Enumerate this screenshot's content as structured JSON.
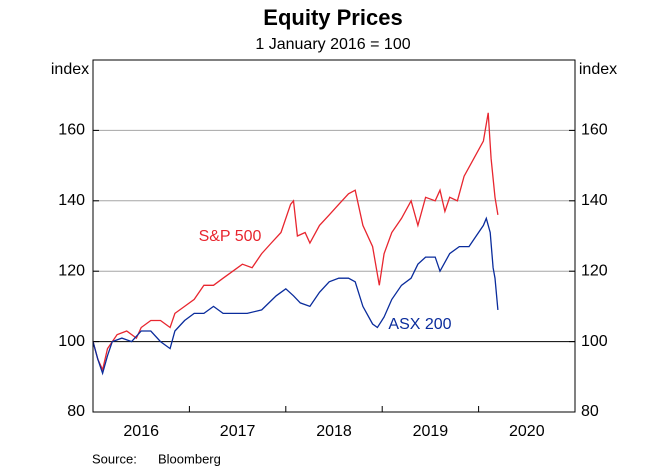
{
  "chart_data": {
    "type": "line",
    "title": "Equity Prices",
    "subtitle": "1 January 2016 = 100",
    "y_axis_label": "index",
    "y2_axis_label": "index",
    "source_label": "Source:",
    "source": "Bloomberg",
    "xlim": [
      2016,
      2021
    ],
    "xticks": [
      {
        "value": 2016.5,
        "label": "2016"
      },
      {
        "value": 2017.5,
        "label": "2017"
      },
      {
        "value": 2018.5,
        "label": "2018"
      },
      {
        "value": 2019.5,
        "label": "2019"
      },
      {
        "value": 2020.5,
        "label": "2020"
      }
    ],
    "ylim": [
      80,
      180
    ],
    "yticks": [
      80,
      100,
      120,
      140,
      160
    ],
    "grid": true,
    "baseline": 100,
    "series": [
      {
        "name": "S&P 500",
        "color": "#e8262f",
        "x": [
          2016.0,
          2016.05,
          2016.1,
          2016.15,
          2016.25,
          2016.35,
          2016.45,
          2016.5,
          2016.6,
          2016.7,
          2016.8,
          2016.85,
          2016.95,
          2017.05,
          2017.15,
          2017.25,
          2017.35,
          2017.45,
          2017.55,
          2017.65,
          2017.75,
          2017.85,
          2017.95,
          2018.05,
          2018.08,
          2018.12,
          2018.2,
          2018.25,
          2018.35,
          2018.45,
          2018.55,
          2018.65,
          2018.72,
          2018.8,
          2018.9,
          2018.97,
          2019.02,
          2019.1,
          2019.2,
          2019.3,
          2019.37,
          2019.45,
          2019.55,
          2019.6,
          2019.65,
          2019.7,
          2019.78,
          2019.85,
          2019.95,
          2020.05,
          2020.1,
          2020.13,
          2020.17,
          2020.2
        ],
        "values": [
          100,
          95,
          92,
          98,
          102,
          103,
          101,
          104,
          106,
          106,
          104,
          108,
          110,
          112,
          116,
          116,
          118,
          120,
          122,
          121,
          125,
          128,
          131,
          139,
          140,
          130,
          131,
          128,
          133,
          136,
          139,
          142,
          143,
          133,
          127,
          116,
          125,
          131,
          135,
          140,
          133,
          141,
          140,
          143,
          137,
          141,
          140,
          147,
          152,
          157,
          165,
          152,
          141,
          136
        ]
      },
      {
        "name": "ASX 200",
        "color": "#0a2c9c",
        "x": [
          2016.0,
          2016.05,
          2016.1,
          2016.15,
          2016.2,
          2016.3,
          2016.4,
          2016.5,
          2016.6,
          2016.7,
          2016.8,
          2016.85,
          2016.95,
          2017.05,
          2017.15,
          2017.25,
          2017.35,
          2017.5,
          2017.6,
          2017.75,
          2017.9,
          2018.0,
          2018.08,
          2018.15,
          2018.25,
          2018.35,
          2018.45,
          2018.55,
          2018.65,
          2018.72,
          2018.8,
          2018.9,
          2018.95,
          2019.02,
          2019.1,
          2019.2,
          2019.3,
          2019.37,
          2019.45,
          2019.55,
          2019.6,
          2019.7,
          2019.8,
          2019.9,
          2019.95,
          2020.05,
          2020.08,
          2020.12,
          2020.15,
          2020.17,
          2020.2
        ],
        "values": [
          100,
          95,
          91,
          96,
          100,
          101,
          100,
          103,
          103,
          100,
          98,
          103,
          106,
          108,
          108,
          110,
          108,
          108,
          108,
          109,
          113,
          115,
          113,
          111,
          110,
          114,
          117,
          118,
          118,
          117,
          110,
          105,
          104,
          107,
          112,
          116,
          118,
          122,
          124,
          124,
          120,
          125,
          127,
          127,
          129,
          133,
          135,
          131,
          121,
          118,
          109
        ]
      }
    ]
  }
}
